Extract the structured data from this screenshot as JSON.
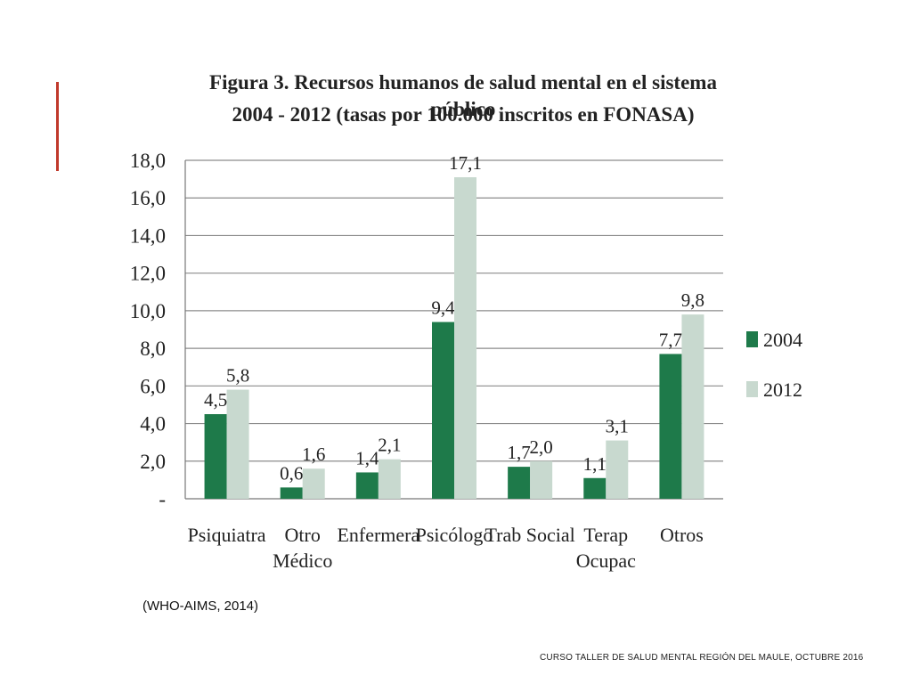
{
  "slide": {
    "source_note": "(WHO-AIMS, 2014)",
    "footer": "CURSO TALLER DE SALUD MENTAL REGIÓN DEL MAULE, OCTUBRE 2016",
    "accent_color": "#c0392b"
  },
  "chart_data": {
    "type": "bar",
    "title": "Figura 3.  Recursos humanos de salud mental en el sistema público",
    "subtitle": "2004 - 2012 (tasas por 100.000 inscritos en FONASA)",
    "categories": [
      [
        "Psiquiatra"
      ],
      [
        "Otro",
        "Médico"
      ],
      [
        "Enfermera"
      ],
      [
        "Psicólogo"
      ],
      [
        "Trab Social"
      ],
      [
        "Terap",
        "Ocupac"
      ],
      [
        "Otros"
      ]
    ],
    "series": [
      {
        "name": "2004",
        "color": "#1e7a4a",
        "values": [
          4.5,
          0.6,
          1.4,
          9.4,
          1.7,
          1.1,
          7.7
        ],
        "labels": [
          "4,5",
          "0,6",
          "1,4",
          "9,4",
          "1,7",
          "1,1",
          "7,7"
        ]
      },
      {
        "name": "2012",
        "color": "#c8d9cf",
        "values": [
          5.8,
          1.6,
          2.1,
          17.1,
          2.0,
          3.1,
          9.8
        ],
        "labels": [
          "5,8",
          "1,6",
          "2,1",
          "17,1",
          "2,0",
          "3,1",
          "9,8"
        ]
      }
    ],
    "yticks": [
      0,
      2,
      4,
      6,
      8,
      10,
      12,
      14,
      16,
      18
    ],
    "ytick_labels": [
      "-",
      "2,0",
      "4,0",
      "6,0",
      "8,0",
      "10,0",
      "12,0",
      "14,0",
      "16,0",
      "18,0"
    ],
    "ylim": [
      0,
      18
    ],
    "grid": true,
    "legend": "right"
  }
}
